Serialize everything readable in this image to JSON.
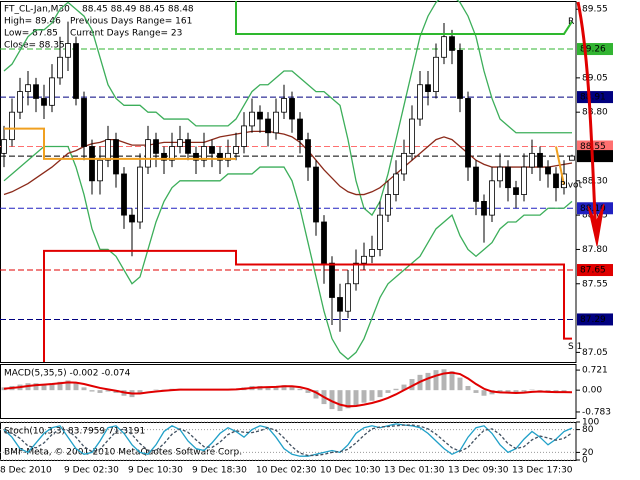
{
  "header": {
    "footer": "BMF-Meta, © 2001-2010 MetaQuotes Software Corp."
  },
  "chart_data": [
    {
      "type": "candlestick",
      "title": "FT_CL-Jan,M30",
      "ohlc_label": "88.45 88.49 88.45 88.48",
      "info": [
        "High= 89.46",
        "Previous Days Range= 161",
        "Low= 87.85",
        "Current Days Range= 23",
        "Close= 88.35"
      ],
      "categories": [
        "8 Dec 2010",
        null,
        null,
        null,
        null,
        null,
        null,
        null,
        "9 Dec 02:30",
        null,
        null,
        null,
        null,
        null,
        null,
        null,
        "9 Dec 10:30",
        null,
        null,
        null,
        null,
        null,
        null,
        null,
        "9 Dec 18:30",
        null,
        null,
        null,
        null,
        null,
        null,
        null,
        "10 Dec 02:30",
        null,
        null,
        null,
        null,
        null,
        null,
        null,
        "10 Dec 10:30",
        null,
        null,
        null,
        null,
        null,
        null,
        null,
        "13 Dec 01:30",
        null,
        null,
        null,
        null,
        null,
        null,
        null,
        "13 Dec 09:30",
        null,
        null,
        null,
        null,
        null,
        null,
        null,
        "13 Dec 17:30",
        null,
        null,
        null,
        null,
        null,
        null,
        null
      ],
      "open": [
        88.5,
        88.6,
        88.8,
        88.95,
        89.0,
        88.9,
        88.85,
        89.05,
        89.2,
        89.3,
        88.9,
        88.55,
        88.3,
        88.45,
        88.6,
        88.35,
        88.05,
        88.0,
        88.4,
        88.6,
        88.5,
        88.45,
        88.55,
        88.6,
        88.5,
        88.45,
        88.55,
        88.5,
        88.45,
        88.5,
        88.55,
        88.7,
        88.8,
        88.75,
        88.65,
        88.8,
        88.9,
        88.75,
        88.6,
        88.4,
        88.0,
        87.7,
        87.45,
        87.35,
        87.55,
        87.7,
        87.75,
        87.8,
        88.05,
        88.2,
        88.35,
        88.5,
        88.75,
        89.0,
        88.95,
        89.2,
        89.35,
        89.25,
        88.9,
        88.4,
        88.15,
        88.05,
        88.3,
        88.4,
        88.25,
        88.2,
        88.4,
        88.5,
        88.4,
        88.35,
        88.25,
        88.45
      ],
      "high": [
        88.7,
        88.9,
        89.05,
        89.1,
        89.05,
        89.0,
        89.15,
        89.35,
        89.46,
        89.35,
        88.95,
        88.6,
        88.55,
        88.7,
        88.65,
        88.4,
        88.1,
        88.5,
        88.7,
        88.65,
        88.55,
        88.65,
        88.7,
        88.65,
        88.55,
        88.65,
        88.6,
        88.55,
        88.6,
        88.65,
        88.8,
        88.9,
        88.85,
        88.8,
        88.9,
        89.0,
        88.95,
        88.8,
        88.65,
        88.45,
        88.05,
        87.75,
        87.55,
        87.65,
        87.8,
        87.85,
        87.9,
        88.15,
        88.3,
        88.45,
        88.6,
        88.85,
        89.1,
        89.1,
        89.3,
        89.45,
        89.4,
        89.3,
        88.95,
        88.45,
        88.2,
        88.4,
        88.5,
        88.45,
        88.3,
        88.5,
        88.6,
        88.55,
        88.45,
        88.4,
        88.45,
        88.49
      ],
      "low": [
        88.4,
        88.55,
        88.75,
        88.85,
        88.8,
        88.75,
        88.8,
        89.0,
        89.1,
        88.85,
        88.45,
        88.2,
        88.2,
        88.4,
        88.25,
        87.95,
        87.75,
        87.95,
        88.35,
        88.4,
        88.35,
        88.4,
        88.5,
        88.45,
        88.35,
        88.4,
        88.4,
        88.35,
        88.4,
        88.45,
        88.5,
        88.65,
        88.65,
        88.55,
        88.6,
        88.75,
        88.65,
        88.5,
        88.3,
        87.9,
        87.55,
        87.25,
        87.2,
        87.3,
        87.5,
        87.65,
        87.7,
        87.75,
        88.0,
        88.15,
        88.3,
        88.45,
        88.7,
        88.85,
        88.9,
        89.15,
        89.15,
        88.8,
        88.3,
        88.05,
        87.85,
        88.0,
        88.25,
        88.15,
        88.1,
        88.15,
        88.35,
        88.3,
        88.25,
        88.15,
        88.2,
        88.45
      ],
      "close": [
        88.6,
        88.8,
        88.95,
        89.0,
        88.9,
        88.85,
        89.05,
        89.2,
        89.3,
        88.9,
        88.55,
        88.3,
        88.45,
        88.6,
        88.35,
        88.05,
        88.0,
        88.4,
        88.6,
        88.5,
        88.45,
        88.55,
        88.6,
        88.5,
        88.45,
        88.55,
        88.5,
        88.45,
        88.5,
        88.55,
        88.7,
        88.8,
        88.75,
        88.65,
        88.8,
        88.9,
        88.75,
        88.6,
        88.4,
        88.0,
        87.7,
        87.45,
        87.35,
        87.55,
        87.7,
        87.75,
        87.8,
        88.05,
        88.2,
        88.35,
        88.5,
        88.75,
        89.0,
        88.95,
        89.2,
        89.35,
        89.25,
        88.9,
        88.4,
        88.15,
        88.05,
        88.3,
        88.4,
        88.25,
        88.2,
        88.4,
        88.5,
        88.4,
        88.35,
        88.25,
        88.35,
        88.48
      ],
      "up_color": "#ffffff",
      "down_color": "#000000",
      "lines": [
        {
          "color": "#3cae5a",
          "values": [
            89.1,
            89.15,
            89.25,
            89.35,
            89.4,
            89.4,
            89.45,
            89.55,
            89.6,
            89.55,
            89.5,
            89.4,
            89.2,
            89.0,
            88.9,
            88.85,
            88.85,
            88.85,
            88.8,
            88.8,
            88.75,
            88.75,
            88.75,
            88.75,
            88.7,
            88.7,
            88.7,
            88.7,
            88.7,
            88.75,
            88.85,
            88.95,
            89.0,
            89.0,
            89.05,
            89.1,
            89.1,
            89.05,
            89.0,
            88.95,
            88.95,
            88.9,
            88.85,
            88.6,
            88.3,
            88.1,
            88.05,
            88.15,
            88.35,
            88.6,
            88.85,
            89.1,
            89.35,
            89.5,
            89.6,
            89.65,
            89.65,
            89.6,
            89.5,
            89.35,
            89.1,
            88.9,
            88.75,
            88.7,
            88.65,
            88.65,
            88.65,
            88.65,
            88.65,
            88.65,
            88.65,
            88.65
          ]
        },
        {
          "color": "#3cae5a",
          "values": [
            88.3,
            88.35,
            88.4,
            88.45,
            88.5,
            88.55,
            88.55,
            88.55,
            88.55,
            88.4,
            88.2,
            87.95,
            87.8,
            87.8,
            87.75,
            87.65,
            87.55,
            87.6,
            87.8,
            88.0,
            88.15,
            88.25,
            88.3,
            88.3,
            88.3,
            88.3,
            88.3,
            88.3,
            88.35,
            88.35,
            88.35,
            88.35,
            88.4,
            88.4,
            88.4,
            88.4,
            88.3,
            88.1,
            87.85,
            87.6,
            87.35,
            87.15,
            87.05,
            87.0,
            87.05,
            87.15,
            87.3,
            87.45,
            87.55,
            87.6,
            87.65,
            87.7,
            87.75,
            87.85,
            87.95,
            88.0,
            88.05,
            87.9,
            87.8,
            87.75,
            87.8,
            87.85,
            87.95,
            88.0,
            88.0,
            88.05,
            88.05,
            88.05,
            88.1,
            88.1,
            88.1,
            88.15
          ]
        },
        {
          "color": "#8b2a1a",
          "values": [
            88.2,
            88.22,
            88.25,
            88.28,
            88.32,
            88.36,
            88.4,
            88.45,
            88.5,
            88.52,
            88.55,
            88.57,
            88.58,
            88.6,
            88.6,
            88.58,
            88.56,
            88.56,
            88.56,
            88.57,
            88.58,
            88.58,
            88.58,
            88.58,
            88.58,
            88.58,
            88.6,
            88.62,
            88.63,
            88.64,
            88.65,
            88.66,
            88.66,
            88.66,
            88.65,
            88.64,
            88.62,
            88.58,
            88.52,
            88.45,
            88.38,
            88.32,
            88.26,
            88.22,
            88.2,
            88.2,
            88.22,
            88.25,
            88.3,
            88.35,
            88.4,
            88.45,
            88.5,
            88.55,
            88.6,
            88.62,
            88.6,
            88.55,
            88.5,
            88.45,
            88.42,
            88.4,
            88.4,
            88.4,
            88.4,
            88.4,
            88.4,
            88.4,
            88.4,
            88.41,
            88.42,
            88.43
          ]
        }
      ],
      "pivots": [
        {
          "name": "R",
          "color": "#2eb82e",
          "x": [
            29,
            29,
            70,
            71
          ],
          "values": [
            89.61,
            89.37,
            89.37,
            89.46
          ]
        },
        {
          "name": "Pivot",
          "color": "#f0a020",
          "x": [
            0,
            5,
            5,
            29,
            29,
            69,
            70
          ],
          "values": [
            88.68,
            88.68,
            88.46,
            88.46,
            null,
            88.55,
            88.27
          ]
        },
        {
          "name": "S 1",
          "color": "#e00000",
          "x": [
            5,
            5,
            29,
            29,
            70,
            70,
            71
          ],
          "values": [
            86.98,
            87.79,
            87.79,
            87.69,
            87.69,
            87.15,
            87.15
          ]
        }
      ],
      "levels": [
        {
          "value": 89.26,
          "color": "#32b432"
        },
        {
          "value": 88.91,
          "color": "#000080"
        },
        {
          "value": 88.55,
          "color": "#ff7070"
        },
        {
          "value": 88.48,
          "color": "#000000"
        },
        {
          "value": 88.1,
          "label": "88.10",
          "color": "#2020c0"
        },
        {
          "value": 87.65,
          "color": "#e00000"
        },
        {
          "value": 87.29,
          "color": "#000080"
        }
      ],
      "ylim": [
        86.98,
        89.61
      ],
      "yticks": [
        89.55,
        89.05,
        {
          "value": 88.8,
          "label": "88.80"
        },
        {
          "value": 88.3,
          "label": "88.30"
        },
        88.05,
        {
          "value": 87.8,
          "label": "87.80"
        },
        87.55,
        87.05
      ]
    },
    {
      "type": "bar",
      "title": "MACD(5,35,5) -0.002 -0.074",
      "color": "#b4b4b4",
      "values": [
        0.1,
        0.15,
        0.2,
        0.25,
        0.25,
        0.22,
        0.25,
        0.3,
        0.35,
        0.25,
        0.1,
        -0.05,
        -0.1,
        -0.05,
        -0.1,
        -0.2,
        -0.25,
        -0.1,
        0.0,
        0.02,
        0.02,
        0.05,
        0.05,
        0.02,
        0.0,
        0.02,
        0.02,
        0.0,
        0.02,
        0.05,
        0.1,
        0.15,
        0.15,
        0.12,
        0.15,
        0.18,
        0.12,
        0.05,
        -0.1,
        -0.3,
        -0.5,
        -0.68,
        -0.75,
        -0.65,
        -0.55,
        -0.45,
        -0.38,
        -0.25,
        -0.1,
        0.05,
        0.2,
        0.4,
        0.55,
        0.62,
        0.72,
        0.75,
        0.68,
        0.45,
        0.15,
        -0.1,
        -0.2,
        -0.15,
        -0.08,
        -0.1,
        -0.12,
        -0.05,
        0.02,
        -0.02,
        -0.05,
        -0.08,
        -0.05,
        -0.002
      ],
      "lines": [
        {
          "color": "#e00000",
          "values": [
            0.05,
            0.08,
            0.11,
            0.15,
            0.18,
            0.2,
            0.22,
            0.25,
            0.28,
            0.27,
            0.22,
            0.15,
            0.08,
            0.03,
            -0.02,
            -0.08,
            -0.12,
            -0.12,
            -0.08,
            -0.05,
            -0.02,
            0.0,
            0.02,
            0.02,
            0.02,
            0.02,
            0.02,
            0.02,
            0.02,
            0.03,
            0.05,
            0.08,
            0.1,
            0.11,
            0.12,
            0.14,
            0.14,
            0.11,
            0.04,
            -0.08,
            -0.25,
            -0.4,
            -0.52,
            -0.58,
            -0.57,
            -0.52,
            -0.46,
            -0.38,
            -0.28,
            -0.15,
            0.0,
            0.15,
            0.3,
            0.42,
            0.52,
            0.6,
            0.63,
            0.58,
            0.42,
            0.22,
            0.05,
            -0.05,
            -0.08,
            -0.09,
            -0.1,
            -0.09,
            -0.06,
            -0.05,
            -0.06,
            -0.07,
            -0.07,
            -0.074
          ]
        }
      ],
      "ylim": [
        -1.0,
        0.94
      ],
      "yticks": [
        0.721,
        {
          "value": 0,
          "label": "0.00"
        },
        -0.783
      ]
    },
    {
      "type": "line",
      "title": "Stoch(10,3,3) 83.7959 71.3191",
      "grid": true,
      "lines": [
        {
          "color": "#20a0c8",
          "values": [
            80,
            60,
            30,
            20,
            45,
            70,
            85,
            90,
            60,
            30,
            15,
            20,
            50,
            85,
            90,
            70,
            40,
            20,
            15,
            40,
            75,
            90,
            80,
            50,
            30,
            25,
            45,
            70,
            85,
            75,
            60,
            80,
            90,
            85,
            60,
            30,
            15,
            10,
            10,
            15,
            20,
            25,
            20,
            40,
            70,
            85,
            90,
            85,
            90,
            95,
            92,
            90,
            85,
            70,
            50,
            30,
            15,
            25,
            60,
            85,
            90,
            70,
            40,
            20,
            30,
            55,
            75,
            60,
            40,
            55,
            75,
            83.7959
          ]
        },
        {
          "color": "#405060",
          "dash": true,
          "values": [
            75,
            70,
            57,
            37,
            32,
            45,
            67,
            82,
            78,
            60,
            35,
            22,
            28,
            52,
            75,
            82,
            67,
            43,
            25,
            25,
            43,
            68,
            82,
            73,
            53,
            35,
            33,
            47,
            67,
            77,
            73,
            72,
            77,
            85,
            78,
            58,
            35,
            18,
            12,
            12,
            15,
            20,
            22,
            28,
            45,
            65,
            82,
            87,
            88,
            90,
            92,
            92,
            89,
            82,
            68,
            50,
            32,
            23,
            33,
            57,
            78,
            82,
            67,
            43,
            30,
            35,
            53,
            63,
            58,
            52,
            57,
            71.3191
          ]
        }
      ],
      "ylim": [
        0,
        100
      ],
      "yticks": [
        0,
        20,
        80,
        100
      ]
    }
  ]
}
